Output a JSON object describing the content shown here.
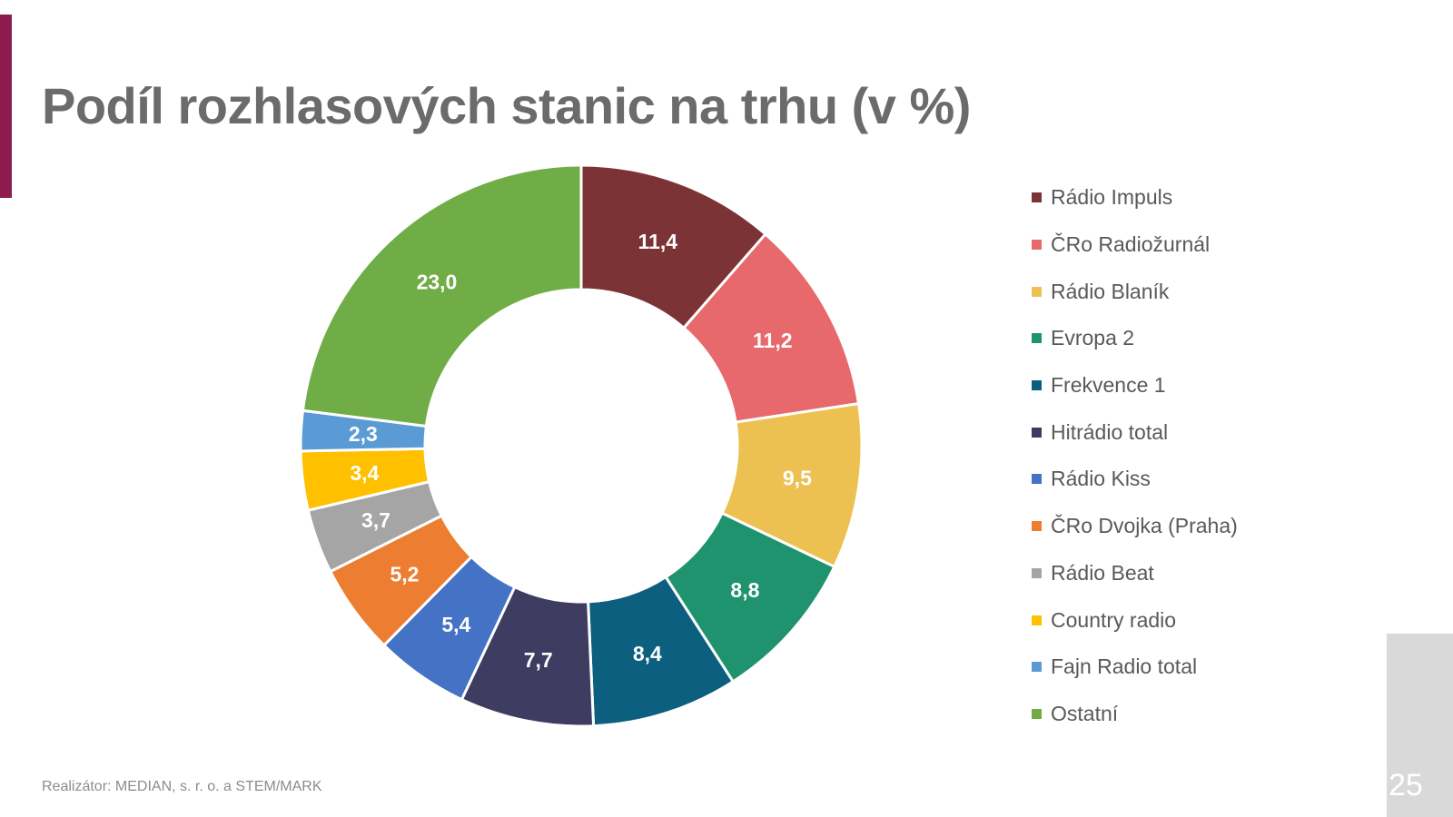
{
  "title": "Podíl rozhlasových stanic na trhu (v %)",
  "footer": "Realizátor: MEDIAN, s. r. o. a STEM/MARK",
  "page_number": "25",
  "accent_color": "#8e1b4f",
  "chart_data": {
    "type": "pie",
    "variant": "donut",
    "title": "Podíl rozhlasových stanic na trhu (v %)",
    "legend_position": "right",
    "categories": [
      "Rádio Impuls",
      "ČRo Radiožurnál",
      "Rádio Blaník",
      "Evropa 2",
      "Frekvence 1",
      "Hitrádio total",
      "Rádio Kiss",
      "ČRo Dvojka (Praha)",
      "Rádio Beat",
      "Country radio",
      "Fajn Radio total",
      "Ostatní"
    ],
    "values": [
      11.4,
      11.2,
      9.5,
      8.8,
      8.4,
      7.7,
      5.4,
      5.2,
      3.7,
      3.4,
      2.3,
      23.0
    ],
    "labels": [
      "11,4",
      "11,2",
      "9,5",
      "8,8",
      "8,4",
      "7,7",
      "5,4",
      "5,2",
      "3,7",
      "3,4",
      "2,3",
      "23,0"
    ],
    "colors": [
      "#7b3336",
      "#e8696b",
      "#ecc152",
      "#1e936d",
      "#0d5f7f",
      "#3f3c62",
      "#4472c4",
      "#ed7d31",
      "#a5a5a5",
      "#ffc000",
      "#5b9bd5",
      "#70ad47"
    ]
  }
}
